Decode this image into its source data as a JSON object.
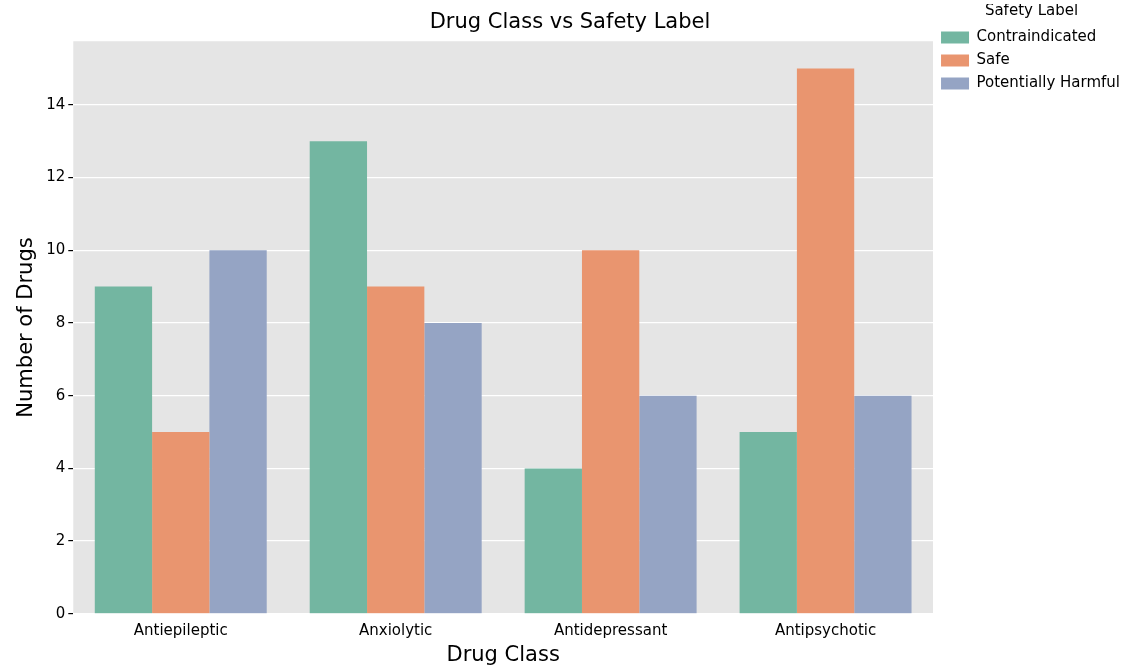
{
  "chart_data": {
    "type": "bar",
    "title": "Drug Class vs Safety Label",
    "xlabel": "Drug Class",
    "ylabel": "Number of Drugs",
    "legend_title": "Safety Label",
    "categories": [
      "Antiepileptic",
      "Anxiolytic",
      "Antidepressant",
      "Antipsychotic"
    ],
    "series": [
      {
        "name": "Contraindicated",
        "color": "#73b6a1",
        "values": [
          9,
          13,
          4,
          5
        ]
      },
      {
        "name": "Safe",
        "color": "#e9956f",
        "values": [
          5,
          9,
          10,
          15
        ]
      },
      {
        "name": "Potentially Harmful",
        "color": "#95a4c4",
        "values": [
          10,
          8,
          6,
          6
        ]
      }
    ],
    "ylim": [
      0,
      15.75
    ],
    "yticks": [
      0,
      2,
      4,
      6,
      8,
      10,
      12,
      14
    ],
    "grid": "y",
    "legend": "top right"
  }
}
